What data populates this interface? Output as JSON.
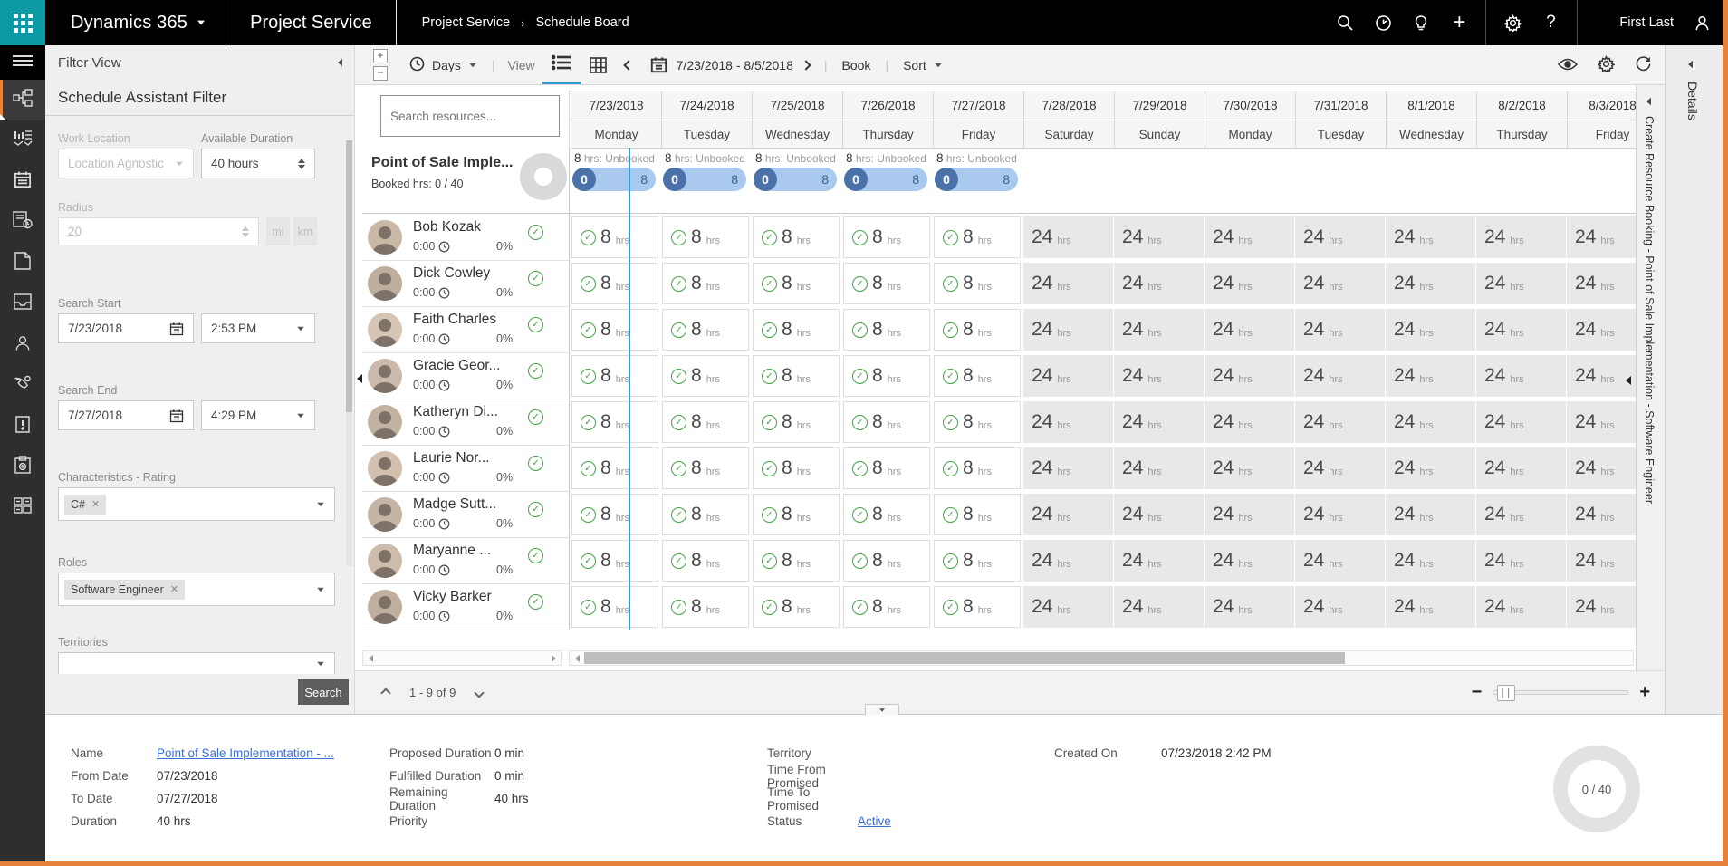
{
  "nav": {
    "brand": "Dynamics 365",
    "app": "Project Service",
    "breadcrumb": [
      "Project Service",
      "Schedule Board"
    ],
    "user_name": "First Last"
  },
  "sidebar": {
    "items": [
      "menu",
      "schedule-board",
      "sales-dashboard",
      "calendar",
      "time-entries",
      "documents",
      "mailbox",
      "contacts",
      "service-calls",
      "invoices",
      "projects",
      "resource-utilization"
    ],
    "active_item": "schedule-board"
  },
  "filter": {
    "title": "Filter View",
    "section_title": "Schedule Assistant Filter",
    "work_location": {
      "label": "Work Location",
      "value": "Location Agnostic"
    },
    "available_duration": {
      "label": "Available Duration",
      "value": "40 hours"
    },
    "radius": {
      "label": "Radius",
      "value": "20",
      "units": [
        "mi",
        "km"
      ]
    },
    "search_start": {
      "label": "Search Start",
      "date": "7/23/2018",
      "time": "2:53 PM"
    },
    "search_end": {
      "label": "Search End",
      "date": "7/27/2018",
      "time": "4:29 PM"
    },
    "characteristics": {
      "label": "Characteristics - Rating",
      "tags": [
        "C#"
      ]
    },
    "roles": {
      "label": "Roles",
      "tags": [
        "Software Engineer"
      ]
    },
    "territories": {
      "label": "Territories",
      "tags": []
    },
    "search_button": "Search"
  },
  "toolbar": {
    "scale": "Days",
    "view_label": "View",
    "date_range": "7/23/2018 - 8/5/2018",
    "book_label": "Book",
    "sort_label": "Sort"
  },
  "resource_panel": {
    "search_placeholder": "Search resources...",
    "pagination": "1 - 9 of 9"
  },
  "project_row": {
    "name": "Point of Sale Imple...",
    "booked_label": "Booked hrs: 0 / 40",
    "unbooked_hours": "8",
    "unbooked_text": "hrs: Unbooked",
    "pill_left": "0",
    "pill_right": "8"
  },
  "columns": [
    {
      "date": "7/23/2018",
      "day": "Monday",
      "in_range": true
    },
    {
      "date": "7/24/2018",
      "day": "Tuesday",
      "in_range": true
    },
    {
      "date": "7/25/2018",
      "day": "Wednesday",
      "in_range": true
    },
    {
      "date": "7/26/2018",
      "day": "Thursday",
      "in_range": true
    },
    {
      "date": "7/27/2018",
      "day": "Friday",
      "in_range": true
    },
    {
      "date": "7/28/2018",
      "day": "Saturday",
      "in_range": false
    },
    {
      "date": "7/29/2018",
      "day": "Sunday",
      "in_range": false
    },
    {
      "date": "7/30/2018",
      "day": "Monday",
      "in_range": false
    },
    {
      "date": "7/31/2018",
      "day": "Tuesday",
      "in_range": false
    },
    {
      "date": "8/1/2018",
      "day": "Wednesday",
      "in_range": false
    },
    {
      "date": "8/2/2018",
      "day": "Thursday",
      "in_range": false
    },
    {
      "date": "8/3/2018",
      "day": "Friday",
      "in_range": false
    }
  ],
  "grid": {
    "in_range_hours": "8",
    "out_range_hours": "24",
    "hours_suffix": "hrs"
  },
  "resources": [
    {
      "name": "Bob Kozak",
      "time": "0:00",
      "percent": "0%"
    },
    {
      "name": "Dick Cowley",
      "time": "0:00",
      "percent": "0%"
    },
    {
      "name": "Faith Charles",
      "time": "0:00",
      "percent": "0%"
    },
    {
      "name": "Gracie Geor...",
      "time": "0:00",
      "percent": "0%"
    },
    {
      "name": "Katheryn Di...",
      "time": "0:00",
      "percent": "0%"
    },
    {
      "name": "Laurie Nor...",
      "time": "0:00",
      "percent": "0%"
    },
    {
      "name": "Madge Sutt...",
      "time": "0:00",
      "percent": "0%"
    },
    {
      "name": "Maryanne ...",
      "time": "0:00",
      "percent": "0%"
    },
    {
      "name": "Vicky Barker",
      "time": "0:00",
      "percent": "0%"
    }
  ],
  "right_panels": {
    "booking_title": "Create Resource Booking - Point of Sale Implementation - Software Engineer",
    "details_title": "Details"
  },
  "details": {
    "groups": [
      {
        "rows": [
          {
            "label": "Name",
            "value": "Point of Sale Implementation - ...",
            "link": true
          },
          {
            "label": "From Date",
            "value": "07/23/2018"
          },
          {
            "label": "To Date",
            "value": "07/27/2018"
          },
          {
            "label": "Duration",
            "value": "40 hrs"
          }
        ]
      },
      {
        "rows": [
          {
            "label": "Proposed Duration",
            "value": "0 min"
          },
          {
            "label": "Fulfilled Duration",
            "value": "0 min"
          },
          {
            "label": "Remaining Duration",
            "value": "40 hrs"
          },
          {
            "label": "Priority",
            "value": ""
          }
        ]
      },
      {
        "rows": [
          {
            "label": "Territory",
            "value": ""
          },
          {
            "label": "Time From Promised",
            "value": ""
          },
          {
            "label": "Time To Promised",
            "value": ""
          },
          {
            "label": "Status",
            "value": "Active",
            "link": true
          }
        ]
      },
      {
        "rows": [
          {
            "label": "Created On",
            "value": "07/23/2018 2:42 PM"
          }
        ]
      }
    ],
    "donut_label": "0 / 40"
  },
  "colors": {
    "accent_teal": "#0e9aa5",
    "pill_bg": "#a9c9ee",
    "pill_circle": "#4a71a8",
    "check_green": "#45a145",
    "link_blue": "#3b6fd4",
    "timeline_blue": "#2e9bd6",
    "window_border": "#e8813c"
  }
}
